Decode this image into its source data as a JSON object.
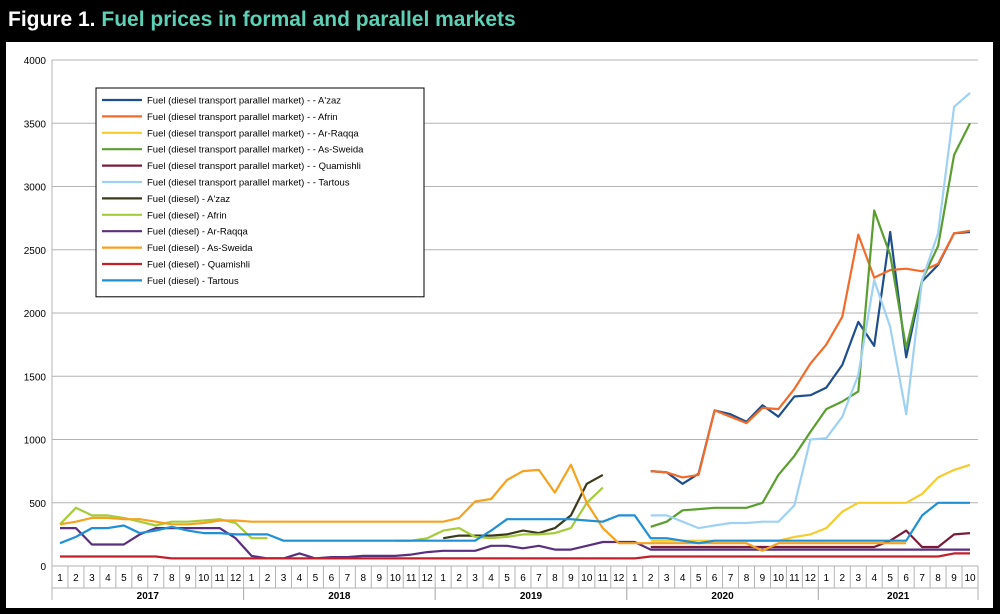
{
  "figure_label": "Figure 1.",
  "figure_title": "Fuel prices in formal and parallel markets",
  "chart_data": {
    "type": "line",
    "title": "Figure 1. Fuel prices in formal and parallel markets",
    "xlabel": "",
    "ylabel": "",
    "ylim": [
      0,
      4000
    ],
    "yticks": [
      0,
      500,
      1000,
      1500,
      2000,
      2500,
      3000,
      3500,
      4000
    ],
    "grid": "horizontal",
    "legend_placement": "top-left",
    "month_labels": [
      "1",
      "2",
      "3",
      "4",
      "5",
      "6",
      "7",
      "8",
      "9",
      "10",
      "11",
      "12",
      "1",
      "2",
      "3",
      "4",
      "5",
      "6",
      "7",
      "8",
      "9",
      "10",
      "11",
      "12",
      "1",
      "2",
      "3",
      "4",
      "5",
      "6",
      "7",
      "8",
      "9",
      "10",
      "11",
      "12",
      "1",
      "2",
      "3",
      "4",
      "5",
      "6",
      "7",
      "8",
      "9",
      "10",
      "11",
      "12",
      "1",
      "2",
      "3",
      "4",
      "5",
      "6",
      "7",
      "8",
      "9",
      "10"
    ],
    "years": [
      {
        "label": "2017",
        "start": 0,
        "end": 11
      },
      {
        "label": "2018",
        "start": 12,
        "end": 23
      },
      {
        "label": "2019",
        "start": 24,
        "end": 35
      },
      {
        "label": "2020",
        "start": 36,
        "end": 47
      },
      {
        "label": "2021",
        "start": 48,
        "end": 57
      }
    ],
    "series": [
      {
        "name": "Fuel (diesel transport parallel market) - - A'zaz",
        "color": "#1f4e8c",
        "values": [
          null,
          null,
          null,
          null,
          null,
          null,
          null,
          null,
          null,
          null,
          null,
          null,
          null,
          null,
          null,
          null,
          null,
          null,
          null,
          null,
          null,
          null,
          null,
          null,
          null,
          null,
          null,
          null,
          null,
          null,
          null,
          null,
          null,
          null,
          null,
          null,
          null,
          750,
          740,
          650,
          730,
          1230,
          1200,
          1140,
          1270,
          1180,
          1340,
          1350,
          1410,
          1590,
          1930,
          1740,
          2640,
          1650,
          2250,
          2380,
          2630,
          2640
        ]
      },
      {
        "name": "Fuel (diesel transport parallel market) - - Afrin",
        "color": "#f26b2a",
        "values": [
          null,
          null,
          null,
          null,
          null,
          null,
          null,
          null,
          null,
          null,
          null,
          null,
          null,
          null,
          null,
          null,
          null,
          null,
          null,
          null,
          null,
          null,
          null,
          null,
          null,
          null,
          null,
          null,
          null,
          null,
          null,
          null,
          null,
          null,
          null,
          null,
          null,
          750,
          740,
          700,
          720,
          1230,
          1180,
          1130,
          1250,
          1240,
          1400,
          1600,
          1750,
          1970,
          2620,
          2280,
          2340,
          2350,
          2330,
          2390,
          2630,
          2650
        ]
      },
      {
        "name": "Fuel (diesel transport parallel market) - - Ar-Raqqa",
        "color": "#f5cc2e",
        "values": [
          null,
          null,
          null,
          null,
          null,
          null,
          null,
          null,
          null,
          null,
          null,
          null,
          null,
          null,
          null,
          null,
          null,
          null,
          null,
          null,
          null,
          null,
          null,
          null,
          null,
          null,
          null,
          null,
          null,
          null,
          null,
          null,
          null,
          null,
          null,
          null,
          null,
          200,
          200,
          200,
          200,
          200,
          200,
          200,
          200,
          200,
          230,
          250,
          300,
          430,
          500,
          500,
          500,
          500,
          570,
          700,
          760,
          800
        ]
      },
      {
        "name": "Fuel (diesel transport parallel market) - - As-Sweida",
        "color": "#5a9e2f",
        "values": [
          null,
          null,
          null,
          null,
          null,
          null,
          null,
          null,
          null,
          null,
          null,
          null,
          null,
          null,
          null,
          null,
          null,
          null,
          null,
          null,
          null,
          null,
          null,
          null,
          null,
          null,
          null,
          null,
          null,
          null,
          null,
          null,
          null,
          null,
          null,
          null,
          null,
          310,
          350,
          440,
          450,
          460,
          460,
          460,
          500,
          720,
          870,
          1060,
          1240,
          1300,
          1380,
          2810,
          2460,
          1720,
          2260,
          2530,
          3250,
          3500
        ]
      },
      {
        "name": "Fuel (diesel transport parallel market) - - Quamishli",
        "color": "#7a1b3a",
        "values": [
          null,
          null,
          null,
          null,
          null,
          null,
          null,
          null,
          null,
          null,
          null,
          null,
          null,
          null,
          null,
          null,
          null,
          null,
          null,
          null,
          null,
          null,
          null,
          null,
          null,
          null,
          null,
          null,
          null,
          null,
          null,
          null,
          null,
          null,
          null,
          null,
          null,
          150,
          150,
          150,
          150,
          150,
          150,
          150,
          150,
          150,
          150,
          150,
          150,
          150,
          150,
          150,
          200,
          280,
          150,
          150,
          250,
          260
        ]
      },
      {
        "name": "Fuel (diesel transport parallel market) - - Tartous",
        "color": "#9fd1f5",
        "values": [
          null,
          null,
          null,
          null,
          null,
          null,
          null,
          null,
          null,
          null,
          null,
          null,
          null,
          null,
          null,
          null,
          null,
          null,
          null,
          null,
          null,
          null,
          null,
          null,
          null,
          null,
          null,
          null,
          null,
          null,
          null,
          null,
          null,
          null,
          null,
          null,
          null,
          400,
          400,
          350,
          300,
          320,
          340,
          340,
          350,
          350,
          480,
          1000,
          1010,
          1180,
          1510,
          2260,
          1890,
          1200,
          2260,
          2630,
          3630,
          3740
        ]
      },
      {
        "name": "Fuel (diesel) - A'zaz",
        "color": "#3b3a1a",
        "values": [
          null,
          null,
          null,
          null,
          null,
          null,
          null,
          null,
          null,
          null,
          null,
          null,
          null,
          null,
          null,
          null,
          null,
          null,
          null,
          null,
          null,
          null,
          null,
          null,
          220,
          240,
          240,
          240,
          250,
          280,
          260,
          300,
          400,
          650,
          720,
          null,
          null,
          null,
          null,
          null,
          null,
          null,
          null,
          null,
          null,
          null,
          null,
          null,
          null,
          null,
          null,
          null,
          null,
          null,
          null,
          null,
          null,
          null
        ]
      },
      {
        "name": "Fuel (diesel) - Afrin",
        "color": "#a6cc3c",
        "values": [
          330,
          460,
          400,
          400,
          380,
          350,
          320,
          350,
          350,
          360,
          370,
          340,
          220,
          220,
          null,
          null,
          null,
          null,
          null,
          null,
          null,
          200,
          200,
          220,
          280,
          300,
          230,
          220,
          230,
          250,
          250,
          260,
          300,
          500,
          620,
          null,
          null,
          null,
          null,
          null,
          null,
          null,
          null,
          null,
          null,
          null,
          null,
          null,
          null,
          null,
          null,
          null,
          null,
          null,
          null,
          null,
          null,
          null
        ]
      },
      {
        "name": "Fuel (diesel) - Ar-Raqqa",
        "color": "#5b2f7f",
        "values": [
          300,
          300,
          170,
          170,
          170,
          250,
          300,
          300,
          300,
          300,
          300,
          220,
          80,
          60,
          60,
          100,
          60,
          70,
          70,
          80,
          80,
          80,
          90,
          110,
          120,
          120,
          120,
          160,
          160,
          140,
          160,
          130,
          130,
          160,
          190,
          190,
          190,
          130,
          130,
          130,
          130,
          130,
          130,
          130,
          130,
          130,
          130,
          130,
          130,
          130,
          130,
          130,
          130,
          130,
          130,
          130,
          130,
          130
        ]
      },
      {
        "name": "Fuel (diesel) - As-Sweida",
        "color": "#f5a21e",
        "values": [
          330,
          350,
          380,
          380,
          370,
          370,
          350,
          330,
          330,
          340,
          360,
          360,
          350,
          350,
          350,
          350,
          350,
          350,
          350,
          350,
          350,
          350,
          350,
          350,
          350,
          380,
          510,
          530,
          680,
          750,
          760,
          580,
          800,
          500,
          300,
          180,
          180,
          180,
          180,
          180,
          180,
          180,
          180,
          180,
          120,
          180,
          180,
          180,
          180,
          180,
          180,
          180,
          180,
          180,
          null,
          null,
          null,
          null
        ]
      },
      {
        "name": "Fuel (diesel) - Quamishli",
        "color": "#c0202a",
        "values": [
          75,
          75,
          75,
          75,
          75,
          75,
          75,
          60,
          60,
          60,
          60,
          60,
          60,
          60,
          60,
          60,
          60,
          60,
          60,
          60,
          60,
          60,
          60,
          60,
          60,
          60,
          60,
          60,
          60,
          60,
          60,
          60,
          60,
          60,
          60,
          60,
          60,
          75,
          75,
          75,
          75,
          75,
          75,
          75,
          75,
          75,
          75,
          75,
          75,
          75,
          75,
          75,
          75,
          75,
          75,
          75,
          100,
          100
        ]
      },
      {
        "name": "Fuel (diesel) - Tartous",
        "color": "#1f8fd6",
        "values": [
          180,
          230,
          300,
          300,
          320,
          260,
          280,
          310,
          280,
          260,
          260,
          250,
          250,
          250,
          200,
          200,
          200,
          200,
          200,
          200,
          200,
          200,
          200,
          200,
          200,
          200,
          200,
          280,
          370,
          370,
          370,
          370,
          370,
          360,
          350,
          400,
          400,
          220,
          220,
          200,
          180,
          200,
          200,
          200,
          200,
          200,
          200,
          200,
          200,
          200,
          200,
          200,
          200,
          200,
          400,
          500,
          500,
          500
        ]
      }
    ]
  }
}
